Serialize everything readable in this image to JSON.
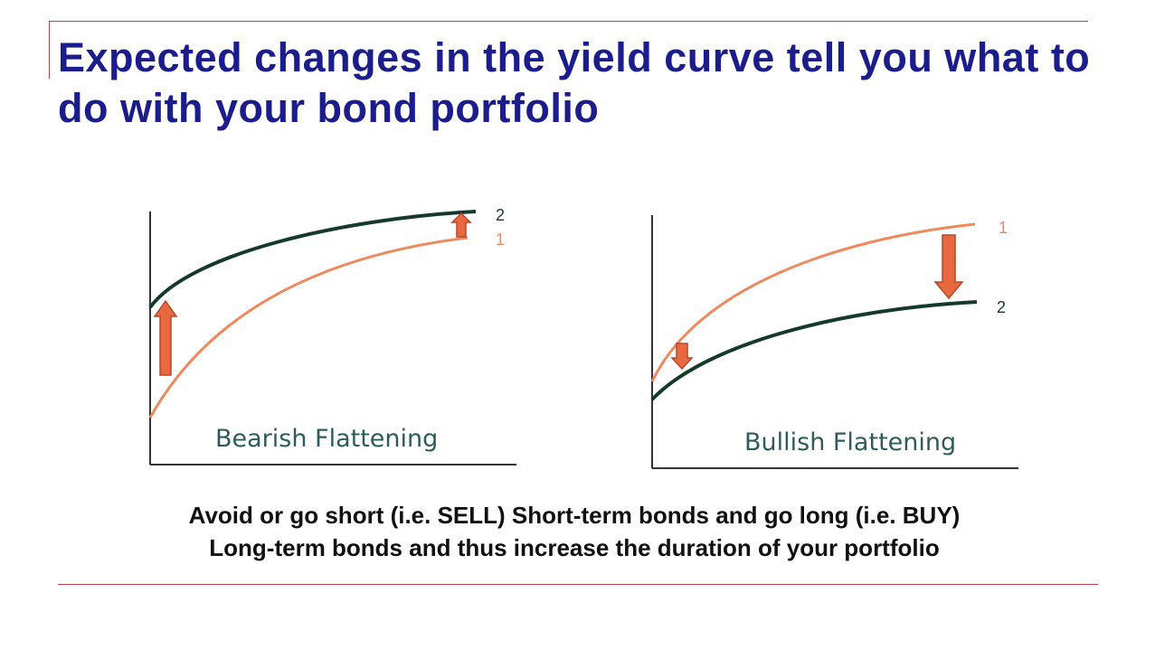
{
  "slide": {
    "title": "Expected changes in the yield curve tell you what to do with your bond portfolio",
    "caption_line1": "Avoid or go short (i.e. SELL) Short-term bonds and go long (i.e. BUY)",
    "caption_line2": "Long-term bonds and thus increase the duration of your portfolio"
  },
  "panels": [
    {
      "label": "Bearish Flattening",
      "curve_old_label": "1",
      "curve_new_label": "2",
      "short_end_shift": "up, large",
      "long_end_shift": "up, small"
    },
    {
      "label": "Bullish Flattening",
      "curve_old_label": "1",
      "curve_new_label": "2",
      "short_end_shift": "down, small",
      "long_end_shift": "down, large"
    }
  ],
  "colors": {
    "title": "#1c1d8c",
    "rule": "#c23b52",
    "curve_old": "#ee8a5e",
    "curve_new": "#153a2c",
    "arrow_fill": "#e8693f",
    "arrow_stroke": "#b5472a",
    "label_text": "#2f5c5a",
    "axis": "#333333"
  },
  "icons": {
    "shift_arrow": "block-arrow"
  }
}
